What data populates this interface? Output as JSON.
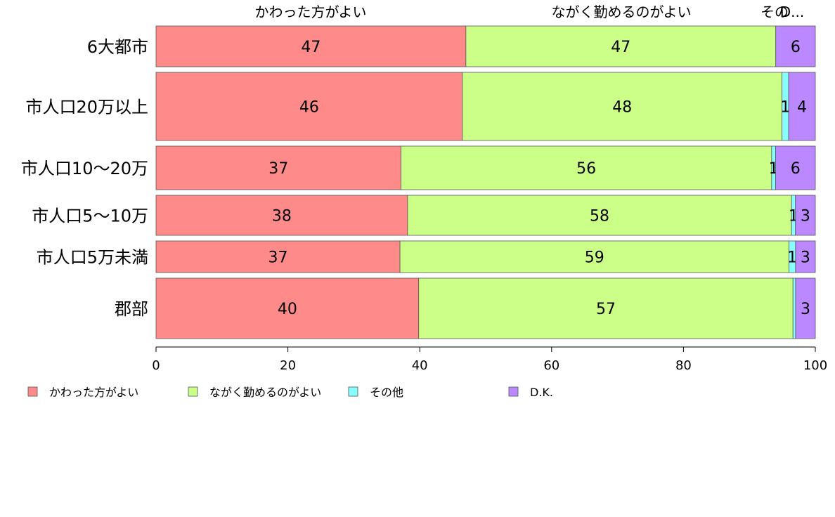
{
  "chart_data": {
    "type": "bar",
    "orientation": "horizontal",
    "stacked": true,
    "categories": [
      "6大都市",
      "市人口20万以上",
      "市人口10〜20万",
      "市人口5〜10万",
      "市人口5万未満",
      "郡部"
    ],
    "series": [
      {
        "name": "かわった方がよい",
        "values": [
          47,
          46,
          37,
          38,
          37,
          40
        ],
        "labels": [
          "47",
          "46",
          "37",
          "38",
          "37",
          "40"
        ],
        "color": "#FF8A8A"
      },
      {
        "name": "ながく勤めるのがよい",
        "values": [
          47,
          48,
          56,
          58,
          59,
          57
        ],
        "labels": [
          "47",
          "48",
          "56",
          "58",
          "59",
          "57"
        ],
        "color": "#CCFF88"
      },
      {
        "name": "その他",
        "values": [
          0,
          1,
          0.6,
          0.6,
          1,
          0.4
        ],
        "labels": [
          "",
          "1",
          "1",
          "1",
          "1",
          ""
        ],
        "color": "#88FFFF"
      },
      {
        "name": "D.K.",
        "values": [
          6,
          4,
          6,
          3,
          3,
          3
        ],
        "labels": [
          "6",
          "4",
          "6",
          "3",
          "3",
          "3"
        ],
        "color": "#BB88FF"
      }
    ],
    "top_labels": [
      "かわった方がよい",
      "ながく勤めるのがよい",
      "その他",
      "D..."
    ],
    "top_labels_display": [
      "かわった方がよい",
      "ながく勤めるのがよい",
      "その",
      "D..."
    ],
    "xlim": [
      0,
      100
    ],
    "xticks": [
      "0",
      "20",
      "40",
      "60",
      "80",
      "100"
    ],
    "grid": false,
    "legend_position": "bottom-left"
  }
}
